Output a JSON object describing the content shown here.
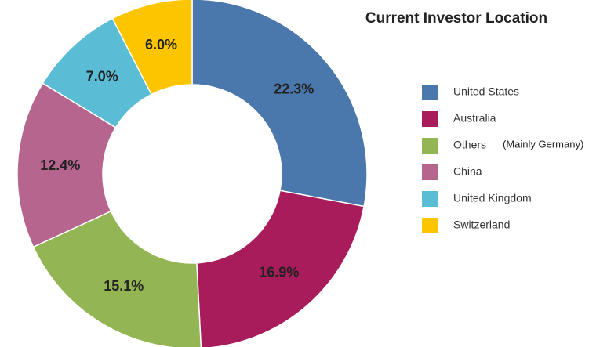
{
  "chart_data": {
    "type": "donut",
    "title": "Current Investor Location",
    "categories": [
      "United States",
      "Australia",
      "Others",
      "China",
      "United Kingdom",
      "Switzerland"
    ],
    "values": [
      22.3,
      16.9,
      15.1,
      12.4,
      7.0,
      6.0
    ],
    "value_labels": [
      "22.3%",
      "16.9%",
      "15.1%",
      "12.4%",
      "7.0%",
      "6.0%"
    ],
    "colors": [
      "#4a78ad",
      "#a81c5c",
      "#93b553",
      "#b5658e",
      "#5bbcd6",
      "#fcc500"
    ],
    "legend": "right",
    "annotations": [
      {
        "text": "(Mainly Germany)",
        "category": 2
      }
    ]
  }
}
